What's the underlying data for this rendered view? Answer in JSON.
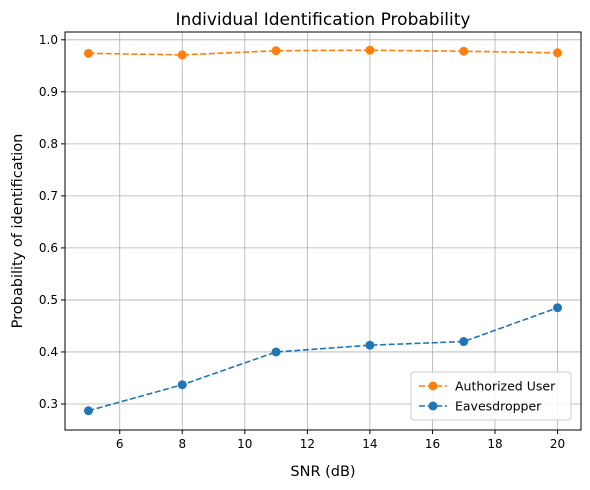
{
  "chart_data": {
    "type": "line",
    "title": "Individual Identification Probability",
    "xlabel": "SNR (dB)",
    "ylabel": "Probability of identification",
    "x": [
      5,
      8,
      11,
      14,
      17,
      20
    ],
    "xlim": [
      4.25,
      20.75
    ],
    "ylim": [
      0.25,
      1.015
    ],
    "xticks": [
      6,
      8,
      10,
      12,
      14,
      16,
      18,
      20
    ],
    "yticks": [
      0.3,
      0.4,
      0.5,
      0.6,
      0.7,
      0.8,
      0.9,
      1.0
    ],
    "xtick_labels": [
      "6",
      "8",
      "10",
      "12",
      "14",
      "16",
      "18",
      "20"
    ],
    "ytick_labels": [
      "0.3",
      "0.4",
      "0.5",
      "0.6",
      "0.7",
      "0.8",
      "0.9",
      "1.0"
    ],
    "grid": true,
    "legend_position": "bottom-right",
    "series": [
      {
        "name": "Authorized User",
        "color": "#ff7f0e",
        "values": [
          0.974,
          0.971,
          0.979,
          0.98,
          0.978,
          0.975
        ]
      },
      {
        "name": "Eavesdropper",
        "color": "#1f77b4",
        "values": [
          0.287,
          0.337,
          0.4,
          0.413,
          0.42,
          0.485
        ]
      }
    ]
  }
}
